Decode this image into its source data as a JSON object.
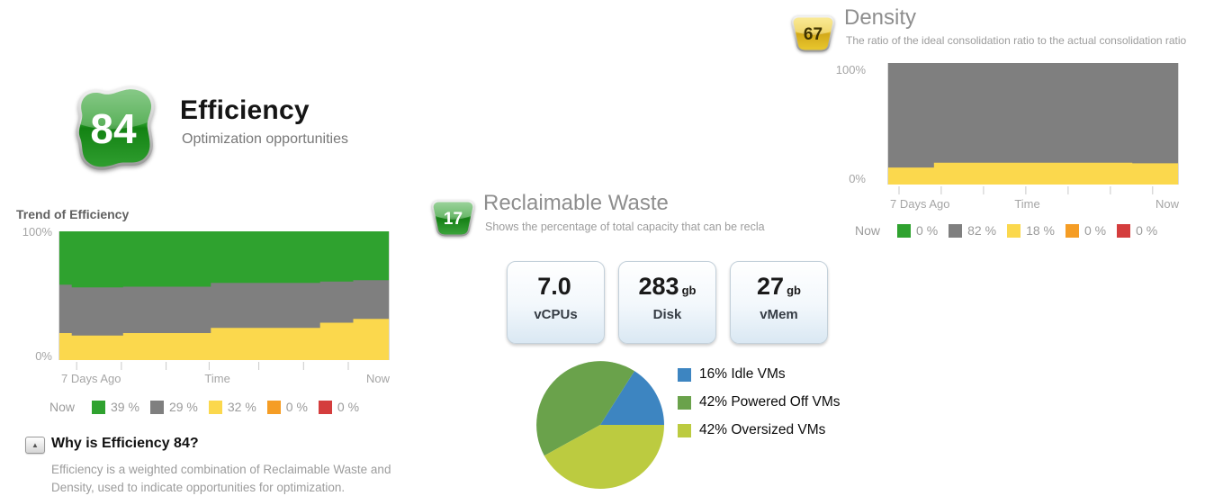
{
  "colors": {
    "green": "#2FA22F",
    "gray": "#7F7F7F",
    "yellow": "#FBD84D",
    "orange": "#F59D25",
    "red": "#D43D3D",
    "pie_blue": "#3D85C1",
    "pie_green": "#6AA24B",
    "pie_olive": "#BCCB40"
  },
  "efficiency": {
    "score": "84",
    "title": "Efficiency",
    "subtitle": "Optimization opportunities",
    "why_title": "Why is Efficiency 84?",
    "why_text": "Efficiency is a weighted combination of Reclaimable Waste and Density, used to indicate opportunities for optimization.",
    "collapse_icon": "▲"
  },
  "reclaimable": {
    "score": "17",
    "title": "Reclaimable Waste",
    "subtitle": "Shows the percentage of total capacity that can be recla",
    "stats": [
      {
        "value": "7.0",
        "unit": "",
        "label": "vCPUs"
      },
      {
        "value": "283",
        "unit": "gb",
        "label": "Disk"
      },
      {
        "value": "27",
        "unit": "gb",
        "label": "vMem"
      }
    ]
  },
  "density": {
    "score": "67",
    "title": "Density",
    "subtitle": "The ratio of the ideal consolidation ratio to the actual consolidation ratio"
  },
  "chart_data": [
    {
      "id": "trend-efficiency",
      "type": "area",
      "title": "Trend of Efficiency",
      "ylim": [
        0,
        100
      ],
      "yticklabels": [
        "0%",
        "100%"
      ],
      "xticklabels": [
        "7 Days Ago",
        "Time",
        "Now"
      ],
      "x_breaks": [
        0,
        0.04,
        0.195,
        0.46,
        0.79,
        0.89,
        1
      ],
      "series": [
        {
          "name": "yellow",
          "color": "#FBD84D",
          "cumulative_top": [
            21,
            19,
            21,
            25,
            29,
            32
          ]
        },
        {
          "name": "gray",
          "color": "#7F7F7F",
          "cumulative_top": [
            58.5,
            56.5,
            57,
            60,
            61,
            62
          ]
        },
        {
          "name": "green",
          "color": "#2FA22F",
          "cumulative_top": [
            100,
            100,
            100,
            100,
            100,
            100
          ]
        }
      ],
      "legend": {
        "label": "Now",
        "items": [
          {
            "color": "#2FA22F",
            "value": "39 %"
          },
          {
            "color": "#7F7F7F",
            "value": "29 %"
          },
          {
            "color": "#FBD84D",
            "value": "32 %"
          },
          {
            "color": "#F59D25",
            "value": "0 %"
          },
          {
            "color": "#D43D3D",
            "value": "0 %"
          }
        ]
      }
    },
    {
      "id": "trend-density",
      "type": "area",
      "title": "",
      "ylim": [
        0,
        100
      ],
      "yticklabels": [
        "0%",
        "100%"
      ],
      "xticklabels": [
        "7 Days Ago",
        "Time",
        "Now"
      ],
      "x_breaks": [
        0,
        0.16,
        0.84,
        1
      ],
      "series": [
        {
          "name": "yellow",
          "color": "#FBD84D",
          "cumulative_top": [
            14,
            18,
            17.5
          ]
        },
        {
          "name": "gray",
          "color": "#7F7F7F",
          "cumulative_top": [
            100,
            100,
            100
          ]
        }
      ],
      "legend": {
        "label": "Now",
        "items": [
          {
            "color": "#2FA22F",
            "value": "0 %"
          },
          {
            "color": "#7F7F7F",
            "value": "82 %"
          },
          {
            "color": "#FBD84D",
            "value": "18 %"
          },
          {
            "color": "#F59D25",
            "value": "0 %"
          },
          {
            "color": "#D43D3D",
            "value": "0 %"
          }
        ]
      }
    },
    {
      "id": "waste-pie",
      "type": "pie",
      "start_angle_deg": 0,
      "direction": "ccw",
      "slices": [
        {
          "label": "16% Idle VMs",
          "value": 16,
          "color": "#3D85C1"
        },
        {
          "label": "42% Powered Off VMs",
          "value": 42,
          "color": "#6AA24B"
        },
        {
          "label": "42% Oversized VMs",
          "value": 42,
          "color": "#BCCB40"
        }
      ]
    }
  ]
}
